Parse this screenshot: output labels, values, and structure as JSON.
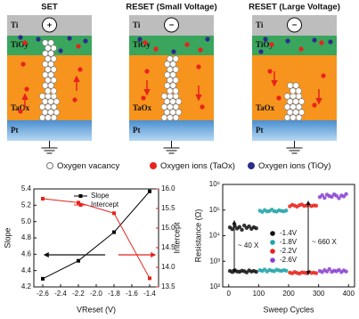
{
  "panels": [
    {
      "title": "SET",
      "sign": "+"
    },
    {
      "title": "RESET (Small Voltage)",
      "sign": "−"
    },
    {
      "title": "RESET (Large Voltage)",
      "sign": "−"
    }
  ],
  "layers": [
    "Ti",
    "TiOy",
    "TaOx",
    "Pt"
  ],
  "legend": [
    "Oxygen vacancy",
    "Oxygen ions (TaOx)",
    "Oxygen ions (TiOy)"
  ],
  "chart_data": [
    {
      "type": "line",
      "x_label": "VReset (V)",
      "y_label": "Slope",
      "y2_label": "Intercept",
      "x": [
        -2.6,
        -2.2,
        -1.8,
        -1.4
      ],
      "series": [
        {
          "name": "Slope",
          "color": "#000000",
          "values": [
            4.3,
            4.52,
            4.87,
            5.37
          ]
        },
        {
          "name": "Intercept",
          "color": "#e8221c",
          "axis": "y2",
          "values": [
            15.75,
            15.65,
            15.38,
            13.72
          ]
        }
      ],
      "xlim": [
        -2.7,
        -1.3
      ],
      "xticks": [
        -2.6,
        -2.4,
        -2.2,
        {
          "value": -2,
          "label": "-2.0"
        },
        -1.8,
        -1.6,
        -1.4
      ],
      "ylim": [
        4.2,
        5.4
      ],
      "yticks": [
        4.2,
        4.4,
        4.6,
        4.8,
        {
          "value": 5,
          "label": "5.0"
        },
        5.2,
        5.4
      ],
      "y2lim": [
        13.5,
        16
      ],
      "y2ticks": [
        13.5,
        {
          "value": 14,
          "label": "14.0"
        },
        14.5,
        {
          "value": 15,
          "label": "15.0"
        },
        15.5,
        {
          "value": 16,
          "label": "16.0"
        }
      ],
      "legend": "upper left"
    },
    {
      "type": "scatter",
      "x_label": "Sweep Cycles",
      "y_label": "Resistance (Ω)",
      "log_y": true,
      "xlim": [
        -20,
        420
      ],
      "xticks": [
        0,
        100,
        200,
        300,
        400
      ],
      "ylim": [
        100,
        1000000
      ],
      "yticks": [
        {
          "value": 100,
          "label": "10²"
        },
        {
          "value": 1000,
          "label": "10³"
        },
        {
          "value": 10000,
          "label": "10⁴"
        },
        {
          "value": 100000,
          "label": "10⁵"
        },
        {
          "value": 1000000,
          "label": "10⁶"
        }
      ],
      "annotations": [
        "~ 40 X",
        "~ 660 X"
      ],
      "legend": "center",
      "series": [
        {
          "name": "-1.4V",
          "color": "#111111",
          "x": [
            4,
            12,
            20,
            28,
            36,
            44,
            52,
            60,
            68,
            76,
            84,
            92,
            4,
            12,
            20,
            28,
            36,
            44,
            52,
            60,
            68,
            76,
            84,
            92
          ],
          "values": [
            21000,
            18000,
            24000,
            19000,
            22000,
            17000,
            25000,
            20000,
            23000,
            18500,
            21500,
            19500,
            420,
            380,
            450,
            400,
            390,
            430,
            410,
            370,
            440,
            400,
            420,
            390
          ]
        },
        {
          "name": "-1.8V",
          "color": "#1fa3a8",
          "x": [
            104,
            112,
            120,
            128,
            136,
            144,
            152,
            160,
            168,
            176,
            184,
            192,
            104,
            112,
            120,
            128,
            136,
            144,
            152,
            160,
            168,
            176,
            184,
            192
          ],
          "values": [
            95000,
            85000,
            100000,
            88000,
            92000,
            105000,
            90000,
            87000,
            98000,
            93000,
            89000,
            96000,
            450,
            420,
            480,
            400,
            460,
            430,
            410,
            470,
            440,
            420,
            450,
            430
          ]
        },
        {
          "name": "-2.2V",
          "color": "#e8221c",
          "x": [
            204,
            212,
            220,
            228,
            236,
            244,
            252,
            260,
            268,
            276,
            284,
            292,
            204,
            212,
            220,
            228,
            236,
            244,
            252,
            260,
            268,
            276,
            284,
            292
          ],
          "values": [
            140000,
            160000,
            150000,
            135000,
            155000,
            165000,
            145000,
            150000,
            158000,
            142000,
            152000,
            148000,
            360,
            340,
            380,
            350,
            330,
            370,
            360,
            340,
            390,
            350,
            360,
            345
          ]
        },
        {
          "name": "-2.6V",
          "color": "#8a3fd1",
          "x": [
            304,
            312,
            320,
            328,
            336,
            344,
            352,
            360,
            368,
            376,
            384,
            392,
            304,
            312,
            320,
            328,
            336,
            344,
            352,
            360,
            368,
            376,
            384,
            392
          ],
          "values": [
            320000,
            380000,
            300000,
            400000,
            350000,
            330000,
            410000,
            360000,
            290000,
            370000,
            340000,
            420000,
            420,
            380,
            450,
            400,
            500,
            390,
            430,
            410,
            460,
            380,
            440,
            400
          ]
        }
      ]
    }
  ]
}
